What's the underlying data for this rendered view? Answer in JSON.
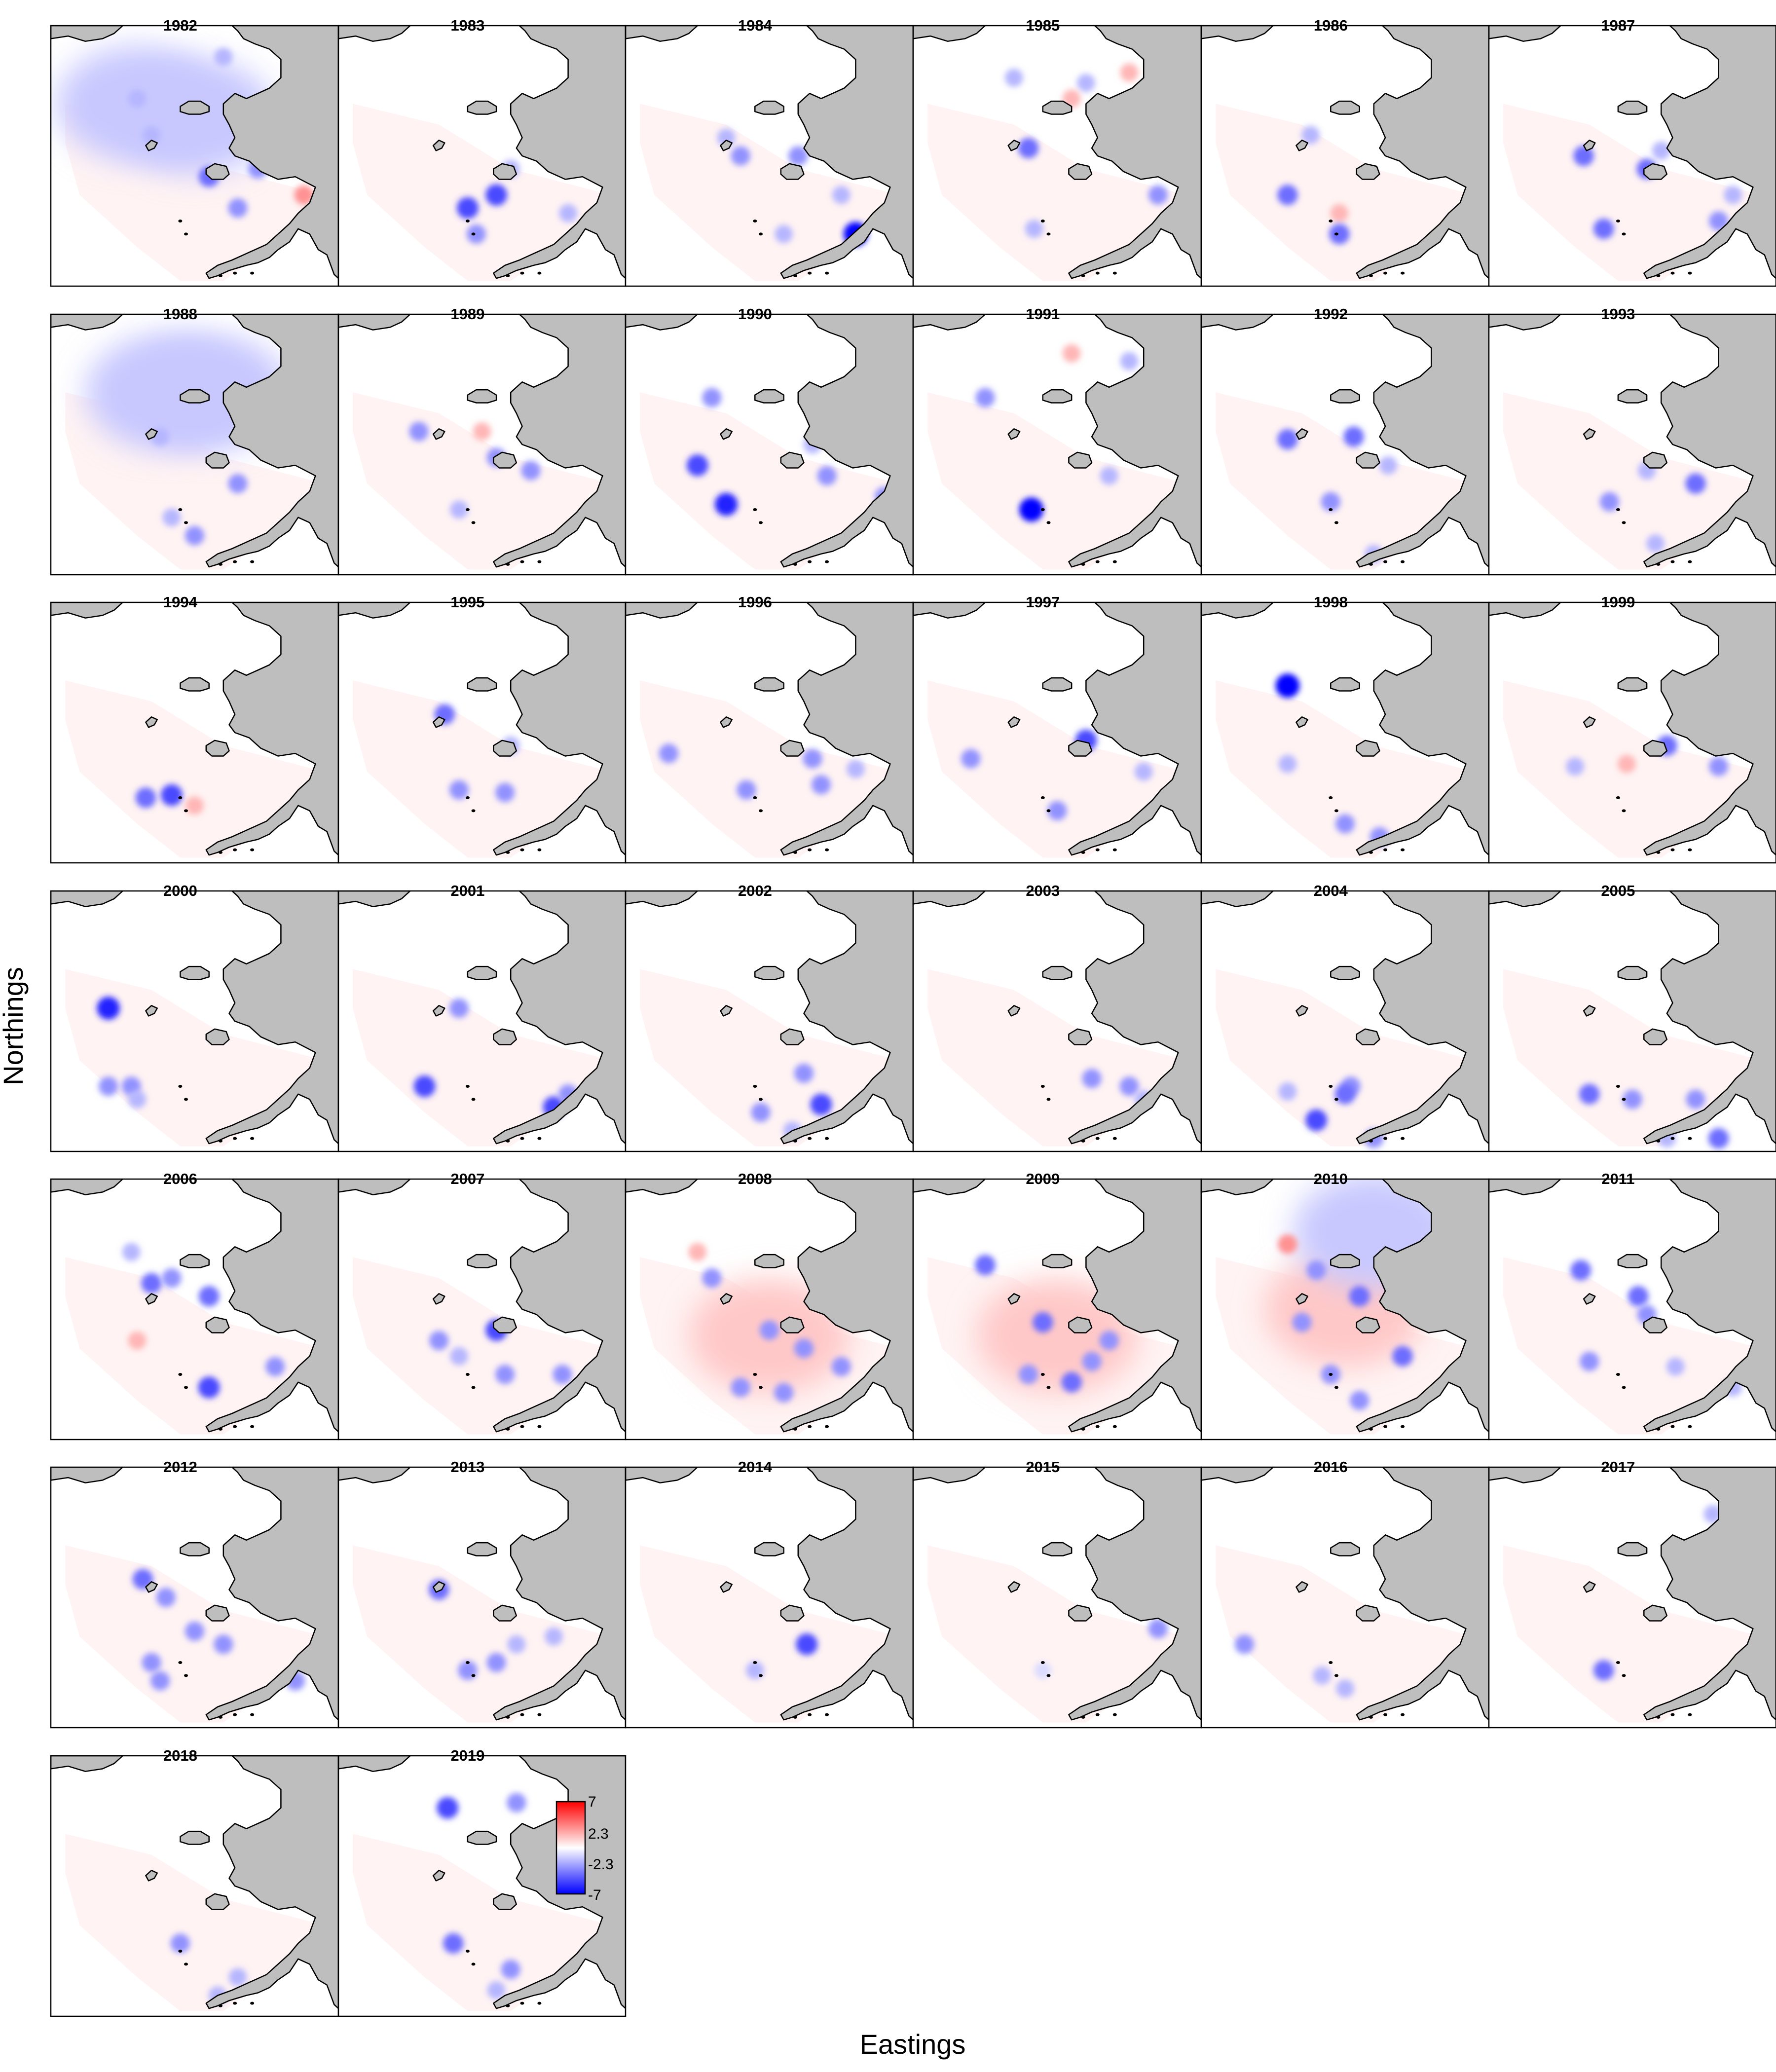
{
  "figure": {
    "x_axis_label": "Eastings",
    "y_axis_label": "Northings",
    "legend": {
      "type": "colorbar",
      "ticks": [
        "7",
        "2.3",
        "-2.3",
        "-7"
      ],
      "min": -7,
      "max": 7,
      "colors": {
        "high": "#ff0000",
        "mid": "#ffffff",
        "low": "#0000ff"
      }
    }
  },
  "panels": [
    {
      "year": "1982",
      "spots": [
        [
          0.55,
          0.58,
          -4
        ],
        [
          0.72,
          0.55,
          -3
        ],
        [
          0.88,
          0.65,
          3
        ],
        [
          0.35,
          0.42,
          -2
        ],
        [
          0.65,
          0.7,
          -3
        ],
        [
          0.3,
          0.28,
          -2
        ],
        [
          0.6,
          0.12,
          -2
        ]
      ],
      "haze": [
        [
          0.5,
          0.35,
          -1
        ],
        [
          0.3,
          0.3,
          -1
        ]
      ]
    },
    {
      "year": "1983",
      "spots": [
        [
          0.45,
          0.7,
          -5
        ],
        [
          0.55,
          0.65,
          -5
        ],
        [
          0.48,
          0.8,
          -3
        ],
        [
          0.8,
          0.72,
          -2
        ],
        [
          0.6,
          0.55,
          -2
        ]
      ],
      "haze": []
    },
    {
      "year": "1984",
      "spots": [
        [
          0.8,
          0.8,
          -7
        ],
        [
          0.4,
          0.5,
          -3
        ],
        [
          0.6,
          0.5,
          -3
        ],
        [
          0.35,
          0.43,
          -2
        ],
        [
          0.55,
          0.8,
          -2
        ],
        [
          0.75,
          0.65,
          -2
        ]
      ],
      "haze": []
    },
    {
      "year": "1985",
      "spots": [
        [
          0.6,
          0.22,
          -2
        ],
        [
          0.75,
          0.18,
          2
        ],
        [
          0.4,
          0.47,
          -4
        ],
        [
          0.42,
          0.78,
          -2
        ],
        [
          0.85,
          0.65,
          -3
        ],
        [
          0.55,
          0.28,
          2
        ],
        [
          0.35,
          0.2,
          -2
        ]
      ],
      "haze": []
    },
    {
      "year": "1986",
      "spots": [
        [
          0.3,
          0.65,
          -4
        ],
        [
          0.48,
          0.72,
          2
        ],
        [
          0.48,
          0.8,
          -4
        ],
        [
          0.38,
          0.42,
          -2
        ]
      ],
      "haze": []
    },
    {
      "year": "1987",
      "spots": [
        [
          0.33,
          0.5,
          -4
        ],
        [
          0.55,
          0.55,
          -4
        ],
        [
          0.4,
          0.78,
          -4
        ],
        [
          0.8,
          0.75,
          -3
        ],
        [
          0.6,
          0.48,
          -2
        ],
        [
          0.85,
          0.65,
          -2
        ]
      ],
      "haze": []
    },
    {
      "year": "1988",
      "spots": [
        [
          0.65,
          0.65,
          -3
        ],
        [
          0.5,
          0.85,
          -3
        ],
        [
          0.38,
          0.47,
          -2
        ],
        [
          0.42,
          0.78,
          -2
        ]
      ],
      "haze": [
        [
          0.55,
          0.3,
          -1
        ],
        [
          0.4,
          0.3,
          -1
        ]
      ]
    },
    {
      "year": "1989",
      "spots": [
        [
          0.28,
          0.45,
          -3
        ],
        [
          0.55,
          0.55,
          -3
        ],
        [
          0.67,
          0.6,
          -3
        ],
        [
          0.42,
          0.75,
          -2
        ],
        [
          0.5,
          0.45,
          2
        ]
      ],
      "haze": []
    },
    {
      "year": "1990",
      "spots": [
        [
          0.25,
          0.58,
          -5
        ],
        [
          0.35,
          0.73,
          -6
        ],
        [
          0.3,
          0.32,
          -3
        ],
        [
          0.7,
          0.62,
          -3
        ],
        [
          0.65,
          0.5,
          -2
        ],
        [
          0.9,
          0.7,
          -3
        ]
      ],
      "haze": []
    },
    {
      "year": "1991",
      "spots": [
        [
          0.41,
          0.75,
          -7
        ],
        [
          0.25,
          0.32,
          -3
        ],
        [
          0.55,
          0.15,
          2
        ],
        [
          0.68,
          0.62,
          -2
        ],
        [
          0.75,
          0.18,
          -2
        ]
      ],
      "haze": []
    },
    {
      "year": "1992",
      "spots": [
        [
          0.3,
          0.48,
          -4
        ],
        [
          0.53,
          0.47,
          -4
        ],
        [
          0.45,
          0.72,
          -3
        ],
        [
          0.65,
          0.58,
          -2
        ],
        [
          0.6,
          0.92,
          -2
        ]
      ],
      "haze": []
    },
    {
      "year": "1993",
      "spots": [
        [
          0.72,
          0.65,
          -4
        ],
        [
          0.42,
          0.72,
          -3
        ],
        [
          0.55,
          0.6,
          -2
        ],
        [
          0.58,
          0.88,
          -2
        ]
      ],
      "haze": []
    },
    {
      "year": "1994",
      "spots": [
        [
          0.33,
          0.75,
          -4
        ],
        [
          0.42,
          0.74,
          -5
        ],
        [
          0.5,
          0.78,
          2
        ]
      ],
      "haze": []
    },
    {
      "year": "1995",
      "spots": [
        [
          0.37,
          0.43,
          -4
        ],
        [
          0.42,
          0.72,
          -3
        ],
        [
          0.58,
          0.73,
          -3
        ],
        [
          0.6,
          0.55,
          -2
        ]
      ],
      "haze": []
    },
    {
      "year": "1996",
      "spots": [
        [
          0.15,
          0.58,
          -3
        ],
        [
          0.42,
          0.72,
          -3
        ],
        [
          0.65,
          0.6,
          -3
        ],
        [
          0.68,
          0.7,
          -3
        ],
        [
          0.8,
          0.64,
          -2
        ]
      ],
      "haze": []
    },
    {
      "year": "1997",
      "spots": [
        [
          0.6,
          0.53,
          -5
        ],
        [
          0.2,
          0.6,
          -3
        ],
        [
          0.5,
          0.8,
          -3
        ],
        [
          0.8,
          0.65,
          -2
        ]
      ],
      "haze": []
    },
    {
      "year": "1998",
      "spots": [
        [
          0.3,
          0.32,
          -7
        ],
        [
          0.5,
          0.85,
          -3
        ],
        [
          0.62,
          0.9,
          -3
        ],
        [
          0.3,
          0.62,
          -2
        ]
      ],
      "haze": []
    },
    {
      "year": "1999",
      "spots": [
        [
          0.62,
          0.55,
          -4
        ],
        [
          0.8,
          0.63,
          -3
        ],
        [
          0.3,
          0.63,
          -2
        ],
        [
          0.48,
          0.62,
          2
        ]
      ],
      "haze": []
    },
    {
      "year": "2000",
      "spots": [
        [
          0.2,
          0.45,
          -6
        ],
        [
          0.2,
          0.75,
          -3
        ],
        [
          0.28,
          0.75,
          -3
        ],
        [
          0.3,
          0.8,
          -2
        ]
      ],
      "haze": []
    },
    {
      "year": "2001",
      "spots": [
        [
          0.3,
          0.75,
          -5
        ],
        [
          0.75,
          0.83,
          -5
        ],
        [
          0.8,
          0.78,
          -3
        ],
        [
          0.42,
          0.45,
          -3
        ]
      ],
      "haze": []
    },
    {
      "year": "2002",
      "spots": [
        [
          0.68,
          0.82,
          -5
        ],
        [
          0.62,
          0.7,
          -3
        ],
        [
          0.47,
          0.85,
          -3
        ],
        [
          0.58,
          0.92,
          -2
        ]
      ],
      "haze": []
    },
    {
      "year": "2003",
      "spots": [
        [
          0.62,
          0.72,
          -3
        ],
        [
          0.75,
          0.75,
          -3
        ],
        [
          0.8,
          0.8,
          -2
        ]
      ],
      "haze": []
    },
    {
      "year": "2004",
      "spots": [
        [
          0.4,
          0.88,
          -5
        ],
        [
          0.52,
          0.75,
          -3
        ],
        [
          0.5,
          0.78,
          -4
        ],
        [
          0.6,
          0.95,
          -3
        ],
        [
          0.3,
          0.77,
          -2
        ]
      ],
      "haze": []
    },
    {
      "year": "2005",
      "spots": [
        [
          0.8,
          0.95,
          -4
        ],
        [
          0.35,
          0.78,
          -4
        ],
        [
          0.5,
          0.8,
          -3
        ],
        [
          0.72,
          0.8,
          -3
        ],
        [
          0.62,
          0.95,
          -2
        ]
      ],
      "haze": []
    },
    {
      "year": "2006",
      "spots": [
        [
          0.35,
          0.4,
          -4
        ],
        [
          0.55,
          0.45,
          -4
        ],
        [
          0.42,
          0.38,
          -3
        ],
        [
          0.28,
          0.28,
          -2
        ],
        [
          0.78,
          0.72,
          -3
        ],
        [
          0.55,
          0.8,
          -5
        ],
        [
          0.3,
          0.62,
          2
        ]
      ],
      "haze": []
    },
    {
      "year": "2007",
      "spots": [
        [
          0.55,
          0.58,
          -5
        ],
        [
          0.58,
          0.75,
          -3
        ],
        [
          0.78,
          0.75,
          -3
        ],
        [
          0.35,
          0.62,
          -3
        ],
        [
          0.42,
          0.68,
          -2
        ]
      ],
      "haze": []
    },
    {
      "year": "2008",
      "spots": [
        [
          0.3,
          0.38,
          -3
        ],
        [
          0.5,
          0.58,
          -3
        ],
        [
          0.62,
          0.65,
          -3
        ],
        [
          0.75,
          0.72,
          -3
        ],
        [
          0.4,
          0.8,
          -3
        ],
        [
          0.55,
          0.82,
          -3
        ],
        [
          0.25,
          0.28,
          2
        ]
      ],
      "haze": [
        [
          0.5,
          0.6,
          1
        ]
      ]
    },
    {
      "year": "2009",
      "spots": [
        [
          0.25,
          0.33,
          -4
        ],
        [
          0.45,
          0.55,
          -4
        ],
        [
          0.62,
          0.7,
          -3
        ],
        [
          0.55,
          0.78,
          -4
        ],
        [
          0.68,
          0.62,
          -3
        ],
        [
          0.4,
          0.75,
          -3
        ]
      ],
      "haze": [
        [
          0.5,
          0.6,
          1
        ]
      ]
    },
    {
      "year": "2010",
      "spots": [
        [
          0.3,
          0.25,
          3
        ],
        [
          0.4,
          0.35,
          -3
        ],
        [
          0.55,
          0.45,
          -4
        ],
        [
          0.7,
          0.68,
          -4
        ],
        [
          0.45,
          0.75,
          -3
        ],
        [
          0.55,
          0.85,
          -3
        ],
        [
          0.35,
          0.55,
          -3
        ]
      ],
      "haze": [
        [
          0.5,
          0.5,
          1
        ],
        [
          0.6,
          0.2,
          -1
        ]
      ]
    },
    {
      "year": "2011",
      "spots": [
        [
          0.32,
          0.35,
          -4
        ],
        [
          0.52,
          0.45,
          -4
        ],
        [
          0.55,
          0.52,
          -3
        ],
        [
          0.35,
          0.7,
          -3
        ],
        [
          0.65,
          0.72,
          -2
        ],
        [
          0.85,
          0.8,
          -2
        ]
      ],
      "haze": []
    },
    {
      "year": "2012",
      "spots": [
        [
          0.32,
          0.43,
          -4
        ],
        [
          0.4,
          0.5,
          -3
        ],
        [
          0.5,
          0.63,
          -3
        ],
        [
          0.6,
          0.68,
          -3
        ],
        [
          0.85,
          0.82,
          -3
        ],
        [
          0.35,
          0.75,
          -3
        ],
        [
          0.38,
          0.82,
          -3
        ]
      ],
      "haze": []
    },
    {
      "year": "2013",
      "spots": [
        [
          0.35,
          0.47,
          -4
        ],
        [
          0.45,
          0.78,
          -3
        ],
        [
          0.55,
          0.75,
          -3
        ],
        [
          0.62,
          0.68,
          -2
        ],
        [
          0.75,
          0.65,
          -2
        ]
      ],
      "haze": []
    },
    {
      "year": "2014",
      "spots": [
        [
          0.63,
          0.68,
          -5
        ],
        [
          0.45,
          0.78,
          -2
        ]
      ],
      "haze": []
    },
    {
      "year": "2015",
      "spots": [
        [
          0.85,
          0.62,
          -3
        ],
        [
          0.45,
          0.78,
          -1
        ]
      ],
      "haze": []
    },
    {
      "year": "2016",
      "spots": [
        [
          0.15,
          0.68,
          -3
        ],
        [
          0.42,
          0.8,
          -2
        ],
        [
          0.5,
          0.85,
          -2
        ]
      ],
      "haze": []
    },
    {
      "year": "2017",
      "spots": [
        [
          0.4,
          0.78,
          -4
        ],
        [
          0.78,
          0.18,
          -2
        ],
        [
          0.82,
          0.28,
          -1
        ]
      ],
      "haze": []
    },
    {
      "year": "2018",
      "spots": [
        [
          0.45,
          0.72,
          -3
        ],
        [
          0.58,
          0.92,
          -2
        ],
        [
          0.65,
          0.85,
          -2
        ]
      ],
      "haze": []
    },
    {
      "year": "2019",
      "spots": [
        [
          0.38,
          0.2,
          -5
        ],
        [
          0.62,
          0.18,
          -3
        ],
        [
          0.4,
          0.72,
          -4
        ],
        [
          0.6,
          0.82,
          -3
        ],
        [
          0.55,
          0.9,
          -2
        ]
      ],
      "haze": []
    }
  ]
}
